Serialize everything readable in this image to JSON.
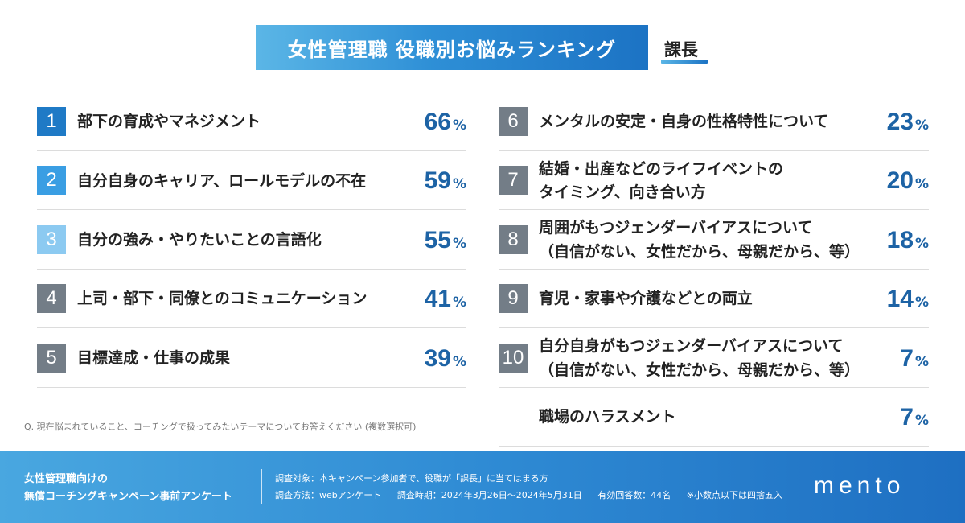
{
  "title": "女性管理職 役職別お悩みランキング",
  "role": "課長",
  "colors": {
    "rank_1": "#1f7ac6",
    "rank_2": "#3a9ee3",
    "rank_3": "#8ccaf1",
    "rank_other": "#737d87",
    "percent_text": "#1d63a5",
    "title_gradient": [
      "#5bb6e6",
      "#1c73c4"
    ]
  },
  "chart_data": {
    "type": "table",
    "ranks": [
      {
        "rank": "1",
        "lines": [
          "部下の育成やマネジメント"
        ],
        "value": 66
      },
      {
        "rank": "2",
        "lines": [
          "自分自身のキャリア、ロールモデルの不在"
        ],
        "value": 59
      },
      {
        "rank": "3",
        "lines": [
          "自分の強み・やりたいことの言語化"
        ],
        "value": 55
      },
      {
        "rank": "4",
        "lines": [
          "上司・部下・同僚とのコミュニケーション"
        ],
        "value": 41
      },
      {
        "rank": "5",
        "lines": [
          "目標達成・仕事の成果"
        ],
        "value": 39
      },
      {
        "rank": "6",
        "lines": [
          "メンタルの安定・自身の性格特性について"
        ],
        "value": 23
      },
      {
        "rank": "7",
        "lines": [
          "結婚・出産などのライフイベントの",
          "タイミング、向き合い方"
        ],
        "value": 20
      },
      {
        "rank": "8",
        "lines": [
          "周囲がもつジェンダーバイアスについて",
          "（自信がない、女性だから、母親だから、等）"
        ],
        "value": 18
      },
      {
        "rank": "9",
        "lines": [
          "育児・家事や介護などとの両立"
        ],
        "value": 14
      },
      {
        "rank": "10",
        "lines": [
          "自分自身がもつジェンダーバイアスについて",
          "（自信がない、女性だから、母親だから、等）"
        ],
        "value": 7
      },
      {
        "rank": "",
        "lines": [
          "職場のハラスメント"
        ],
        "value": 7
      }
    ],
    "unit": "%"
  },
  "footnote": "Q. 現在悩まれていること、コーチングで扱ってみたいテーマについてお答えください (複数選択可)",
  "footer": {
    "survey_name_line1": "女性管理職向けの",
    "survey_name_line2": "無償コーチングキャンペーン事前アンケート",
    "target": "調査対象：本キャンペーン参加者で、役職が「課長」に当てはまる方",
    "method": "調査方法：webアンケート",
    "period": "調査時期：2024年3月26日〜2024年5月31日",
    "responses": "有効回答数：44名",
    "note": "※小数点以下は四捨五入",
    "logo": "mento"
  }
}
